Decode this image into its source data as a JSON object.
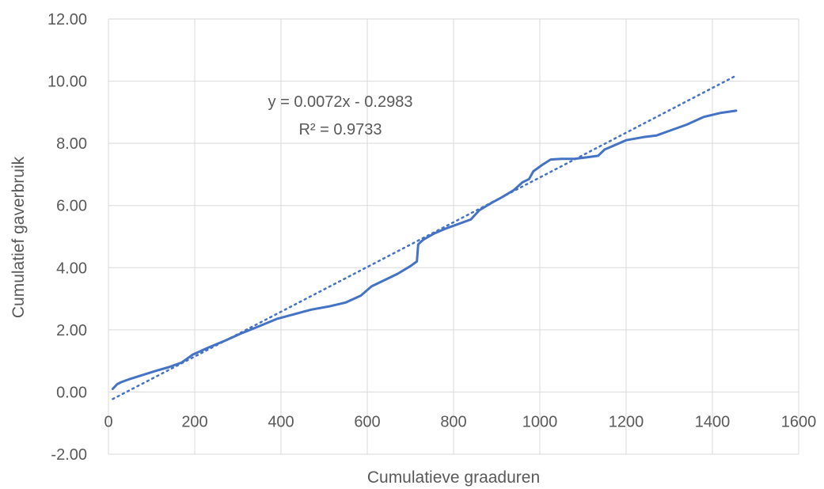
{
  "chart_data": {
    "type": "scatter",
    "title": "",
    "xlabel": "Cumulatieve graaduren",
    "ylabel": "Cumulatief gaverbruik",
    "xlim": [
      0,
      1600
    ],
    "ylim": [
      -2,
      12
    ],
    "x_ticks": [
      "0",
      "200",
      "400",
      "600",
      "800",
      "1000",
      "1200",
      "1400",
      "1600"
    ],
    "y_ticks": [
      "-2.00",
      "0.00",
      "2.00",
      "4.00",
      "6.00",
      "8.00",
      "10.00",
      "12.00"
    ],
    "grid": true,
    "legend": "none",
    "series": [
      {
        "style": "solid-line",
        "color": "#4472C4",
        "points": [
          [
            10,
            0.1
          ],
          [
            20,
            0.25
          ],
          [
            30,
            0.32
          ],
          [
            50,
            0.42
          ],
          [
            80,
            0.55
          ],
          [
            110,
            0.68
          ],
          [
            140,
            0.8
          ],
          [
            170,
            0.95
          ],
          [
            195,
            1.2
          ],
          [
            230,
            1.42
          ],
          [
            270,
            1.65
          ],
          [
            310,
            1.9
          ],
          [
            350,
            2.12
          ],
          [
            390,
            2.35
          ],
          [
            430,
            2.5
          ],
          [
            470,
            2.65
          ],
          [
            510,
            2.75
          ],
          [
            550,
            2.88
          ],
          [
            585,
            3.1
          ],
          [
            610,
            3.4
          ],
          [
            640,
            3.6
          ],
          [
            670,
            3.8
          ],
          [
            700,
            4.05
          ],
          [
            715,
            4.2
          ],
          [
            718,
            4.75
          ],
          [
            730,
            4.9
          ],
          [
            755,
            5.1
          ],
          [
            780,
            5.25
          ],
          [
            810,
            5.4
          ],
          [
            840,
            5.55
          ],
          [
            860,
            5.85
          ],
          [
            890,
            6.1
          ],
          [
            910,
            6.25
          ],
          [
            940,
            6.5
          ],
          [
            960,
            6.75
          ],
          [
            975,
            6.85
          ],
          [
            985,
            7.1
          ],
          [
            1005,
            7.3
          ],
          [
            1025,
            7.48
          ],
          [
            1050,
            7.5
          ],
          [
            1080,
            7.5
          ],
          [
            1110,
            7.55
          ],
          [
            1135,
            7.6
          ],
          [
            1150,
            7.8
          ],
          [
            1175,
            7.95
          ],
          [
            1200,
            8.1
          ],
          [
            1240,
            8.2
          ],
          [
            1270,
            8.25
          ],
          [
            1300,
            8.4
          ],
          [
            1340,
            8.6
          ],
          [
            1380,
            8.85
          ],
          [
            1420,
            8.98
          ],
          [
            1455,
            9.05
          ]
        ]
      },
      {
        "style": "dotted-trendline",
        "color": "#4472C4",
        "slope": 0.0072,
        "intercept": -0.2983,
        "x_range": [
          10,
          1455
        ]
      }
    ],
    "annotations": [
      "y = 0.0072x - 0.2983",
      "R² = 0.9733"
    ]
  }
}
